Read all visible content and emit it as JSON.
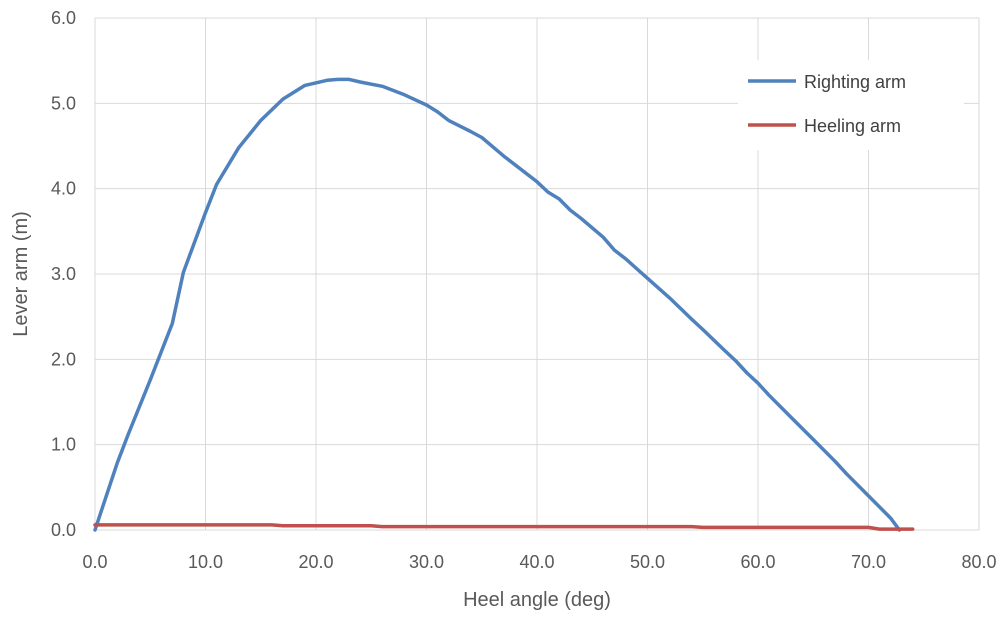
{
  "chart_data": {
    "type": "line",
    "title": "",
    "xlabel": "Heel angle (deg)",
    "ylabel": "Lever arm (m)",
    "xlim": [
      0,
      80
    ],
    "ylim": [
      0,
      6
    ],
    "x_ticks": [
      "0.0",
      "10.0",
      "20.0",
      "30.0",
      "40.0",
      "50.0",
      "60.0",
      "70.0",
      "80.0"
    ],
    "y_ticks": [
      "0.0",
      "1.0",
      "2.0",
      "3.0",
      "4.0",
      "5.0",
      "6.0"
    ],
    "grid": true,
    "legend_position": "top-right",
    "series": [
      {
        "name": "Righting arm",
        "color": "#4f81bd",
        "points": [
          [
            0,
            0
          ],
          [
            2,
            0.78
          ],
          [
            3,
            1.12
          ],
          [
            5,
            1.76
          ],
          [
            7,
            2.42
          ],
          [
            8,
            3.02
          ],
          [
            10,
            3.72
          ],
          [
            11,
            4.05
          ],
          [
            13,
            4.48
          ],
          [
            15,
            4.8
          ],
          [
            17,
            5.05
          ],
          [
            19,
            5.21
          ],
          [
            21,
            5.27
          ],
          [
            22,
            5.28
          ],
          [
            23,
            5.28
          ],
          [
            24,
            5.25
          ],
          [
            26,
            5.2
          ],
          [
            27,
            5.15
          ],
          [
            28,
            5.1
          ],
          [
            30,
            4.98
          ],
          [
            31,
            4.9
          ],
          [
            32,
            4.8
          ],
          [
            34,
            4.67
          ],
          [
            35,
            4.6
          ],
          [
            37,
            4.38
          ],
          [
            40,
            4.08
          ],
          [
            41,
            3.96
          ],
          [
            42,
            3.88
          ],
          [
            43,
            3.75
          ],
          [
            44,
            3.65
          ],
          [
            46,
            3.43
          ],
          [
            47,
            3.28
          ],
          [
            48,
            3.18
          ],
          [
            50,
            2.95
          ],
          [
            52,
            2.72
          ],
          [
            54,
            2.47
          ],
          [
            55,
            2.35
          ],
          [
            57,
            2.1
          ],
          [
            58,
            1.98
          ],
          [
            59,
            1.84
          ],
          [
            60,
            1.72
          ],
          [
            61,
            1.58
          ],
          [
            63,
            1.32
          ],
          [
            65,
            1.06
          ],
          [
            67,
            0.8
          ],
          [
            68,
            0.66
          ],
          [
            70,
            0.4
          ],
          [
            72,
            0.14
          ],
          [
            72.8,
            0
          ]
        ]
      },
      {
        "name": "Heeling arm",
        "color": "#c0504d",
        "points": [
          [
            0,
            0.06
          ],
          [
            16,
            0.06
          ],
          [
            17,
            0.05
          ],
          [
            25,
            0.05
          ],
          [
            26,
            0.04
          ],
          [
            54,
            0.04
          ],
          [
            55,
            0.03
          ],
          [
            70,
            0.03
          ],
          [
            71,
            0.01
          ],
          [
            74,
            0.01
          ]
        ]
      }
    ]
  }
}
